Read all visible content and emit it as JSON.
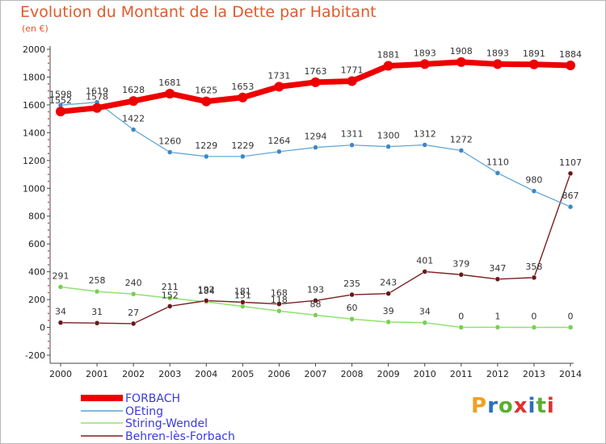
{
  "header": {
    "title": "Evolution du Montant de la Dette par Habitant",
    "unit": "(en €)"
  },
  "logo": {
    "text": "Proxiti",
    "colors": [
      "#f0a020",
      "#2a6fc0",
      "#5ab030",
      "#e03030",
      "#2a6fc0",
      "#5ab030",
      "#e03030"
    ]
  },
  "chart_data": {
    "type": "line",
    "title": "Evolution du Montant de la Dette par Habitant",
    "ylabel": "(en €)",
    "xlabel": "",
    "x": [
      "2000",
      "2001",
      "2002",
      "2003",
      "2004",
      "2005",
      "2006",
      "2007",
      "2008",
      "2009",
      "2010",
      "2011",
      "2012",
      "2013",
      "2014"
    ],
    "ylim": [
      -200,
      2000
    ],
    "yticks": [
      "-200",
      "0",
      "200",
      "400",
      "600",
      "800",
      "1000",
      "1200",
      "1400",
      "1600",
      "1800",
      "2000"
    ],
    "grid": false,
    "legend_position": "bottom-left",
    "series": [
      {
        "name": "FORBACH",
        "color": "#ee0000",
        "marker_color": "#ee0000",
        "values": [
          1552,
          1578,
          1628,
          1681,
          1625,
          1653,
          1731,
          1763,
          1771,
          1881,
          1893,
          1908,
          1893,
          1891,
          1884
        ],
        "labels": [
          "1552",
          "1578",
          "1628",
          "1681",
          "1625",
          "1653",
          "1731",
          "1763",
          "1771",
          "1881",
          "1893",
          "1908",
          "1893",
          "1891",
          "1884"
        ]
      },
      {
        "name": "OEting",
        "color": "#5aa0d0",
        "marker_color": "#3a88c8",
        "values": [
          1598,
          1619,
          1422,
          1260,
          1229,
          1229,
          1264,
          1294,
          1311,
          1300,
          1312,
          1272,
          1110,
          980,
          867
        ],
        "labels": [
          "1598",
          "1619",
          "1422",
          "1260",
          "1229",
          "1229",
          "1264",
          "1294",
          "1311",
          "1300",
          "1312",
          "1272",
          "1110",
          "980",
          "867"
        ]
      },
      {
        "name": "Stiring-Wendel",
        "color": "#90e070",
        "marker_color": "#78d050",
        "values": [
          291,
          258,
          240,
          211,
          184,
          151,
          118,
          88,
          60,
          39,
          34,
          0,
          1,
          0,
          0
        ],
        "labels": [
          "291",
          "258",
          "240",
          "211",
          "184",
          "151",
          "118",
          "88",
          "60",
          "39",
          "34",
          "0",
          "1",
          "0",
          "0"
        ]
      },
      {
        "name": "Behren-lès-Forbach",
        "color": "#7a2020",
        "marker_color": "#6a1818",
        "values": [
          34,
          31,
          27,
          152,
          192,
          181,
          168,
          193,
          235,
          243,
          401,
          379,
          347,
          358,
          1107
        ],
        "labels": [
          "34",
          "31",
          "27",
          "152",
          "192",
          "181",
          "168",
          "193",
          "235",
          "243",
          "401",
          "379",
          "347",
          "358",
          "1107"
        ]
      }
    ]
  }
}
